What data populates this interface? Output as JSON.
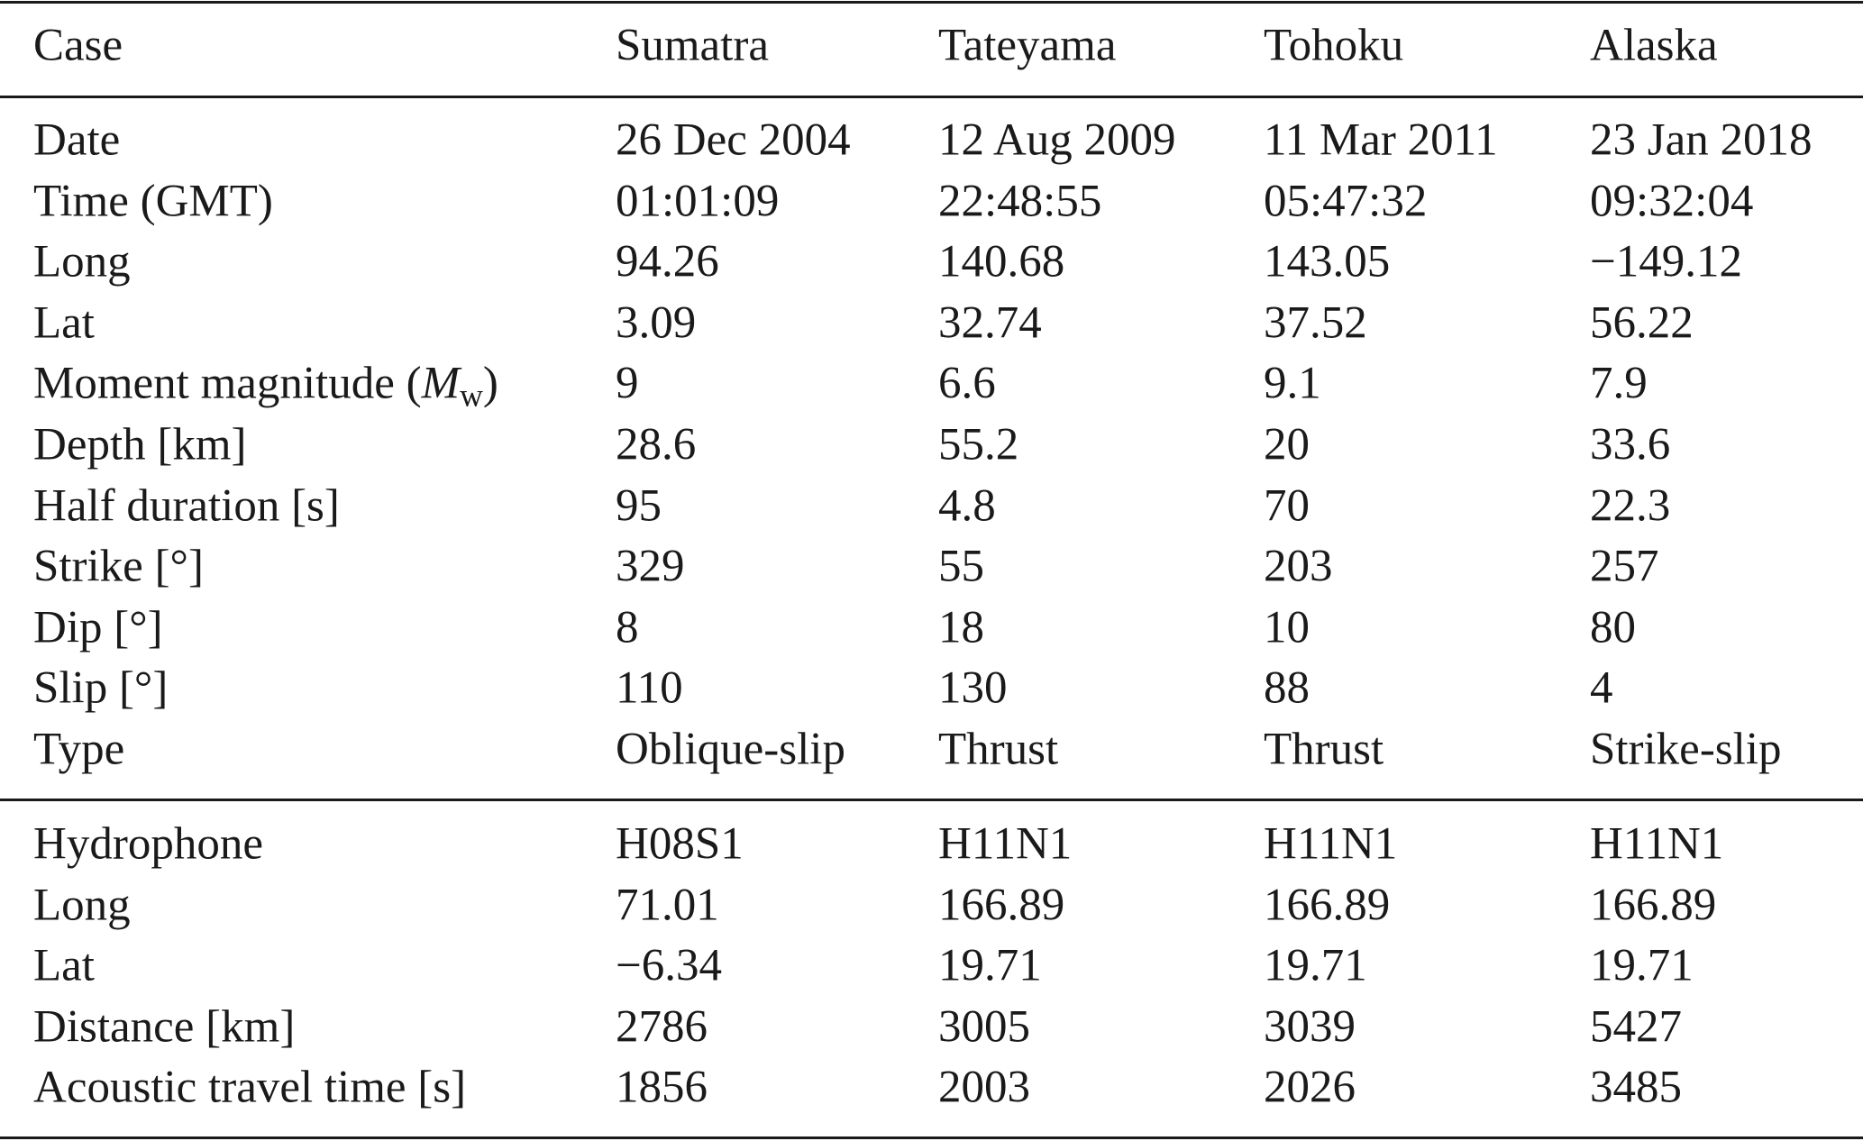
{
  "table": {
    "header": [
      "Case",
      "Sumatra",
      "Tateyama",
      "Tohoku",
      "Alaska"
    ],
    "sections": [
      {
        "rows": [
          [
            "Date",
            "26 Dec 2004",
            "12 Aug 2009",
            "11 Mar 2011",
            "23 Jan 2018"
          ],
          [
            "Time (GMT)",
            "01:01:09",
            "22:48:55",
            "05:47:32",
            "09:32:04"
          ],
          [
            "Long",
            "94.26",
            "140.68",
            "143.05",
            "−149.12"
          ],
          [
            "Lat",
            "3.09",
            "32.74",
            "37.52",
            "56.22"
          ],
          [
            [
              "Moment magnitude (",
              "M",
              "w",
              ")"
            ],
            "9",
            "6.6",
            "9.1",
            "7.9"
          ],
          [
            "Depth [km]",
            "28.6",
            "55.2",
            "20",
            "33.6"
          ],
          [
            "Half duration [s]",
            "95",
            "4.8",
            "70",
            "22.3"
          ],
          [
            "Strike [°]",
            "329",
            "55",
            "203",
            "257"
          ],
          [
            "Dip [°]",
            "8",
            "18",
            "10",
            "80"
          ],
          [
            "Slip [°]",
            "110",
            "130",
            "88",
            "4"
          ],
          [
            "Type",
            "Oblique-slip",
            "Thrust",
            "Thrust",
            "Strike-slip"
          ]
        ]
      },
      {
        "rows": [
          [
            "Hydrophone",
            "H08S1",
            "H11N1",
            "H11N1",
            "H11N1"
          ],
          [
            "Long",
            "71.01",
            "166.89",
            "166.89",
            "166.89"
          ],
          [
            "Lat",
            "−6.34",
            "19.71",
            "19.71",
            "19.71"
          ],
          [
            "Distance [km]",
            "2786",
            "3005",
            "3039",
            "5427"
          ],
          [
            "Acoustic travel time [s]",
            "1856",
            "2003",
            "2026",
            "3485"
          ]
        ]
      }
    ]
  }
}
